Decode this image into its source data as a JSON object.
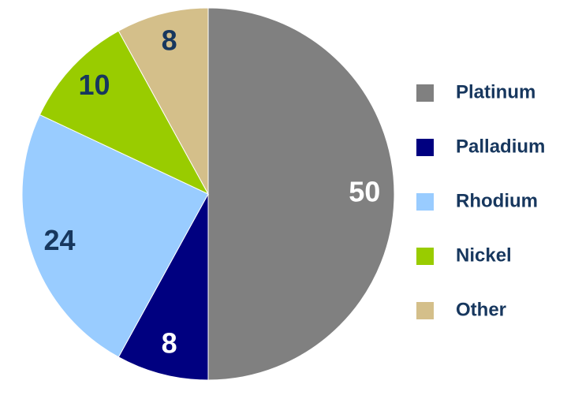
{
  "chart_data": {
    "type": "pie",
    "categories": [
      "Platinum",
      "Palladium",
      "Rhodium",
      "Nickel",
      "Other"
    ],
    "values": [
      50,
      8,
      24,
      10,
      8
    ],
    "colors": [
      "#808080",
      "#000080",
      "#99ccff",
      "#99cc00",
      "#d4bf8a"
    ],
    "legend": "right"
  }
}
